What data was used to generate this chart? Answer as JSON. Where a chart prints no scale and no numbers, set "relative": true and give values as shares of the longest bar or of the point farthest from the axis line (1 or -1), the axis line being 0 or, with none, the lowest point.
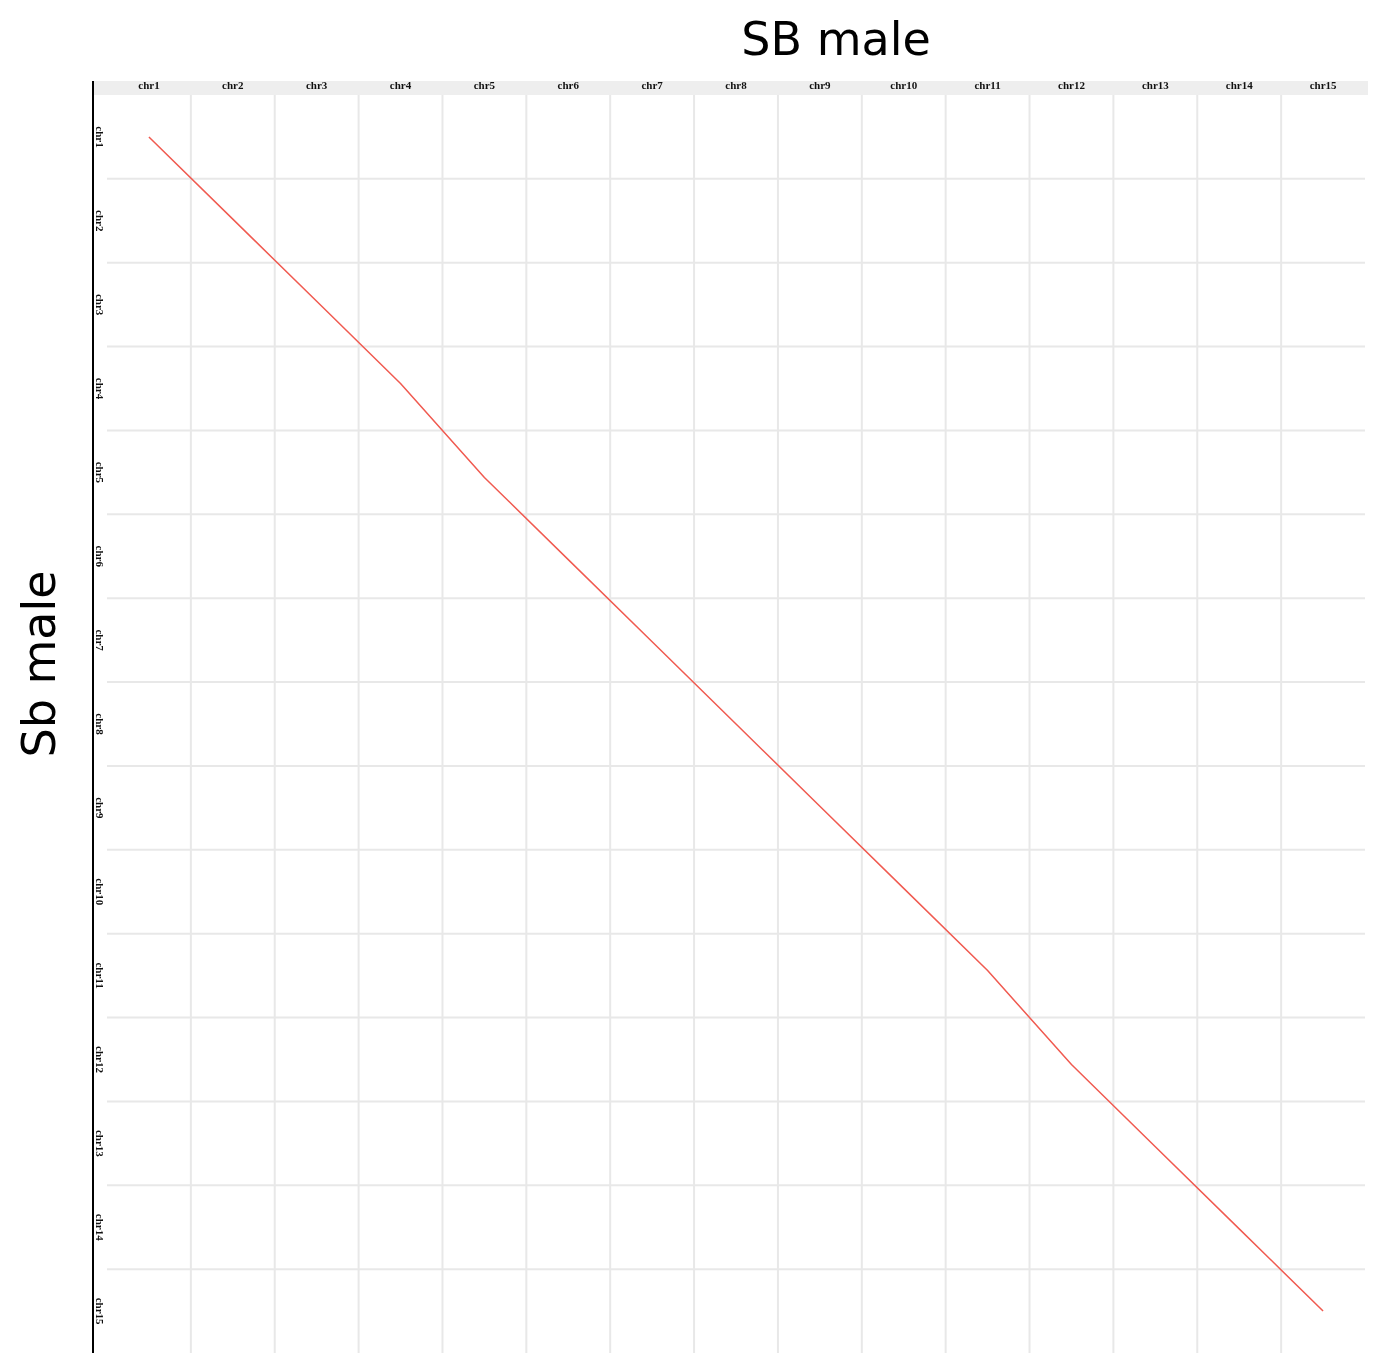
{
  "chart_data": {
    "type": "line",
    "relative": true,
    "xlabel": "SB male",
    "ylabel": "Sb male",
    "grid": true,
    "categories": [
      "chr1",
      "chr2",
      "chr3",
      "chr4",
      "chr5",
      "chr6",
      "chr7",
      "chr8",
      "chr9",
      "chr10",
      "chr11",
      "chr12",
      "chr13",
      "chr14",
      "chr15"
    ],
    "series": [
      {
        "color": "#f05a50",
        "values": [
          1,
          0.93,
          0.86,
          0.79,
          0.71,
          0.64,
          0.57,
          0.5,
          0.43,
          0.36,
          0.29,
          0.21,
          0.14,
          0.07,
          0
        ]
      }
    ],
    "annotations": [
      "chr1",
      "chr2",
      "chr3",
      "chr4",
      "chr5",
      "chr6",
      "chr7",
      "chr8",
      "chr9",
      "chr10",
      "chr11",
      "chr12",
      "chr13",
      "chr14",
      "chr15"
    ]
  }
}
